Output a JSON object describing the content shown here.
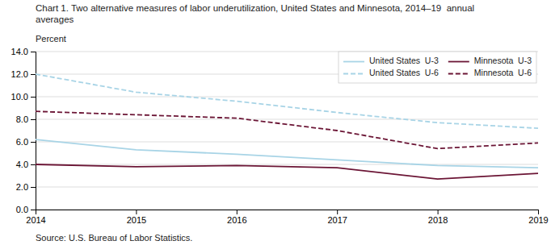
{
  "chart_data": {
    "type": "line",
    "title": [
      "Chart 1. Two alternative measures of labor underutilization, United States and Minnesota, 2014–19  annual",
      "averages"
    ],
    "ylabel": "Percent",
    "annotations": [
      "Source: U.S. Bureau of Labor Statistics."
    ],
    "x": [
      2014,
      2015,
      2016,
      2017,
      2018,
      2019
    ],
    "series": [
      {
        "name": "United States  U-3",
        "color": "#a8d4e6",
        "line_style": "solid",
        "values": [
          6.2,
          5.3,
          4.9,
          4.4,
          3.9,
          3.7
        ]
      },
      {
        "name": "United States  U-6",
        "color": "#a8d4e6",
        "line_style": "dashed",
        "values": [
          12.0,
          10.4,
          9.6,
          8.6,
          7.7,
          7.2
        ]
      },
      {
        "name": "Minnesota  U-3",
        "color": "#6b1535",
        "line_style": "solid",
        "values": [
          4.0,
          3.8,
          3.9,
          3.7,
          2.7,
          3.2
        ]
      },
      {
        "name": "Minnesota  U-6",
        "color": "#6b1535",
        "line_style": "dashed",
        "values": [
          8.7,
          8.4,
          8.1,
          7.0,
          5.4,
          5.9
        ]
      }
    ],
    "xlim": [
      2014,
      2019
    ],
    "xticks": [
      2014,
      2015,
      2016,
      2017,
      2018,
      2019
    ],
    "ylim": [
      0.0,
      14.0
    ],
    "yticks": [
      {
        "value": 0.0,
        "label": "0.0"
      },
      {
        "value": 2.0,
        "label": "2.0"
      },
      {
        "value": 4.0,
        "label": "4.0"
      },
      {
        "value": 6.0,
        "label": "6.0"
      },
      {
        "value": 8.0,
        "label": "8.0"
      },
      {
        "value": 10.0,
        "label": "10.0"
      },
      {
        "value": 12.0,
        "label": "12.0"
      },
      {
        "value": 14.0,
        "label": "14.0"
      }
    ],
    "grid": "y",
    "legend": "upper-right"
  }
}
